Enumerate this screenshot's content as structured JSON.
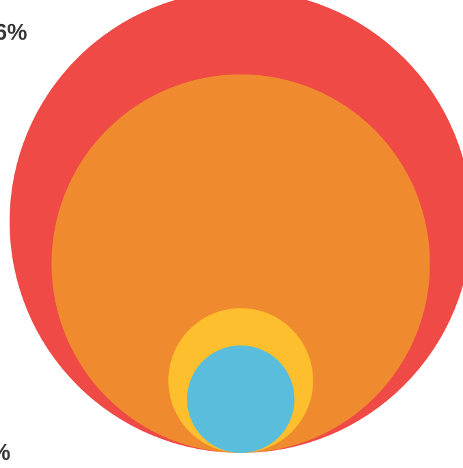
{
  "chart_data": {
    "type": "nested-bubble",
    "title": "",
    "series": [
      {
        "label_visible": "6%",
        "value": 100,
        "color": "#ef4a46"
      },
      {
        "label_visible": "",
        "value": 67,
        "color": "#ef8b2e"
      },
      {
        "label_visible": "",
        "value": 9.8,
        "color": "#fdbf2d"
      },
      {
        "label_visible": "",
        "value": 5.4,
        "color": "#59bddb"
      }
    ],
    "extra_labels": [
      {
        "text": "%"
      }
    ]
  }
}
